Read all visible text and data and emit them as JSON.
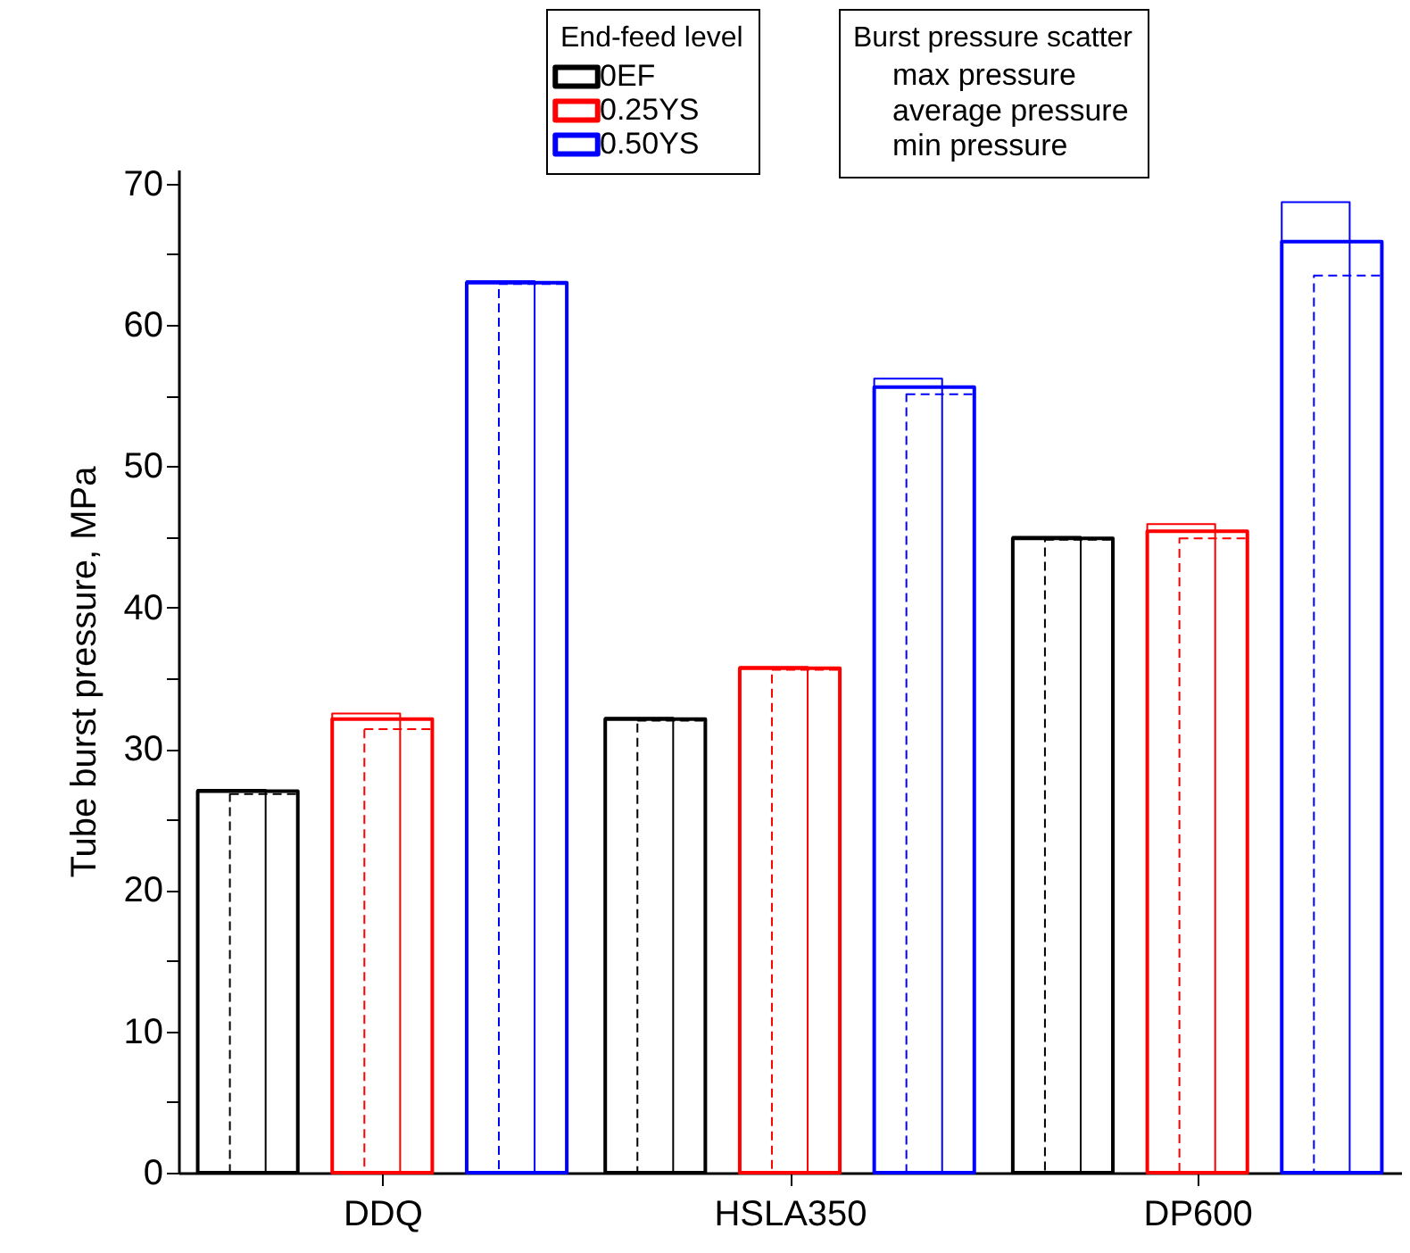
{
  "chart_data": {
    "type": "bar",
    "ylabel": "Tube burst pressure, MPa",
    "legend_title": "End-feed level",
    "legend": "top",
    "categories": [
      "DDQ",
      "HSLA350",
      "DP600"
    ],
    "series": [
      {
        "color": "#000000",
        "values": [
          27.1,
          32.2,
          45.0
        ]
      },
      {
        "name": "0EF",
        "color": "#000000",
        "values": [
          27.0,
          32.1,
          44.9
        ]
      },
      {
        "color": "#000000",
        "values": [
          26.8,
          32.0,
          44.8
        ],
        "line_style": "dashed"
      },
      {
        "color": "#ff0000",
        "values": [
          32.5,
          35.8,
          45.9
        ]
      },
      {
        "name": "0.25YS",
        "color": "#ff0000",
        "values": [
          32.1,
          35.7,
          45.4
        ]
      },
      {
        "color": "#ff0000",
        "values": [
          31.4,
          35.6,
          44.9
        ],
        "line_style": "dashed"
      },
      {
        "color": "#0000ff",
        "values": [
          63.1,
          56.2,
          68.7
        ]
      },
      {
        "name": "0.50YS",
        "color": "#0000ff",
        "values": [
          63.0,
          55.6,
          65.9
        ]
      },
      {
        "color": "#0000ff",
        "values": [
          62.9,
          55.1,
          63.5
        ],
        "line_style": "dashed"
      }
    ],
    "annotations": [
      "Burst pressure scatter",
      "max pressure",
      "average pressure",
      "min pressure"
    ],
    "ylim": [
      0,
      71
    ],
    "yticks": [
      0,
      {
        "value": 5,
        "label": null
      },
      10,
      {
        "value": 15,
        "label": null
      },
      20,
      {
        "value": 25,
        "label": null
      },
      30,
      {
        "value": 35,
        "label": null
      },
      40,
      {
        "value": 45,
        "label": null
      },
      50,
      {
        "value": 55,
        "label": null
      },
      60,
      {
        "value": 65,
        "label": null
      },
      70
    ],
    "grid": false
  }
}
